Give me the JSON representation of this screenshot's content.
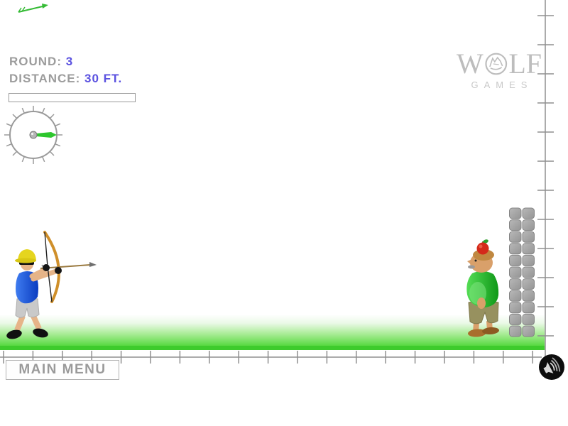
{
  "hud": {
    "round_label": "ROUND:",
    "round_value": "3",
    "distance_label": "DISTANCE:",
    "distance_value": "30 FT."
  },
  "power_meter": {
    "value_percent": 0
  },
  "logo": {
    "prefix": "W",
    "suffix": "LF",
    "subtitle": "GAMES"
  },
  "footer": {
    "main_menu_label": "MAIN MENU"
  },
  "icons": {
    "dial": "power-angle-dial",
    "sound": "speaker-icon",
    "wolf": "wolf-head-logo-icon",
    "arrow": "flying-arrow-sprite"
  },
  "colors": {
    "accent_blue": "#5b52e0",
    "label_gray": "#9c9c9c",
    "ground_green": "#3ecb2c",
    "needle_green": "#2dc62d",
    "ruler_gray": "#8f8f8f",
    "archer_shirt_blue": "#1d5ada",
    "target_shirt_green": "#27b92f",
    "apple_red": "#d42a1a",
    "stone_gray": "#a8a8a8"
  }
}
